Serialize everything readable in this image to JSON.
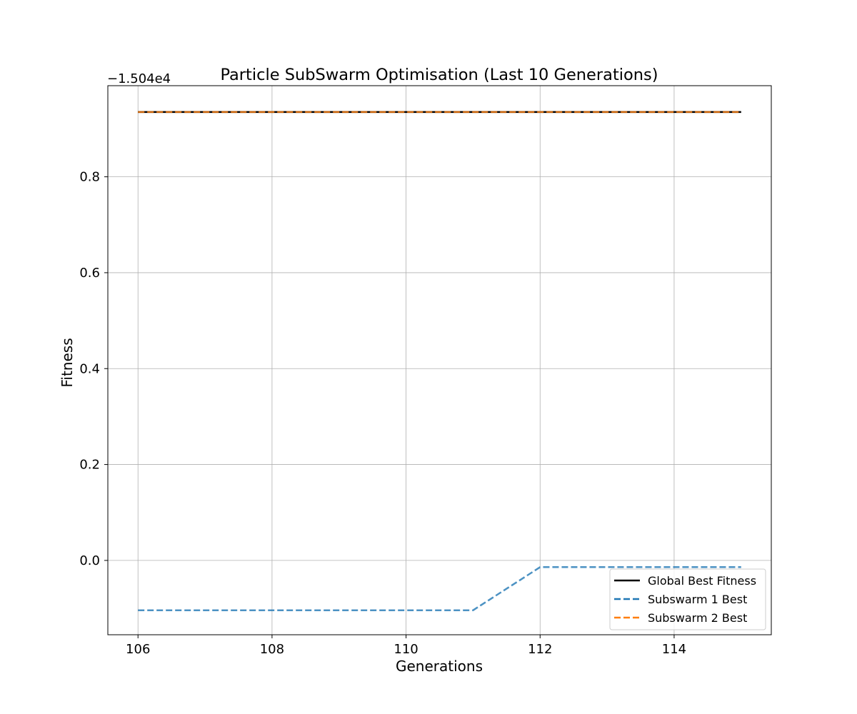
{
  "chart_data": {
    "type": "line",
    "title": "Particle SubSwarm Optimisation (Last 10 Generations)",
    "xlabel": "Generations",
    "ylabel": "Fitness",
    "offset_label": "−1.504e4",
    "x": [
      106,
      107,
      108,
      109,
      110,
      111,
      112,
      113,
      114,
      115
    ],
    "xlim": [
      105.55,
      115.45
    ],
    "ylim": [
      -0.155,
      0.99
    ],
    "xticks": [
      106,
      108,
      110,
      112,
      114
    ],
    "xtick_labels": [
      "106",
      "108",
      "110",
      "112",
      "114"
    ],
    "yticks": [
      0.0,
      0.2,
      0.4,
      0.6,
      0.8
    ],
    "ytick_labels": [
      "0.0",
      "0.2",
      "0.4",
      "0.6",
      "0.8"
    ],
    "grid": true,
    "legend_position": "lower-right",
    "series": [
      {
        "name": "Global Best Fitness",
        "color": "#000000",
        "style": "solid",
        "values": [
          0.935,
          0.935,
          0.935,
          0.935,
          0.935,
          0.935,
          0.935,
          0.935,
          0.935,
          0.935
        ]
      },
      {
        "name": "Subswarm 1 Best",
        "color": "#1f77b4",
        "style": "dashed",
        "values": [
          -0.104,
          -0.104,
          -0.104,
          -0.104,
          -0.104,
          -0.104,
          -0.014,
          -0.014,
          -0.014,
          -0.014
        ]
      },
      {
        "name": "Subswarm 2 Best",
        "color": "#ff7f0e",
        "style": "dashed",
        "values": [
          0.935,
          0.935,
          0.935,
          0.935,
          0.935,
          0.935,
          0.935,
          0.935,
          0.935,
          0.935
        ]
      }
    ]
  }
}
